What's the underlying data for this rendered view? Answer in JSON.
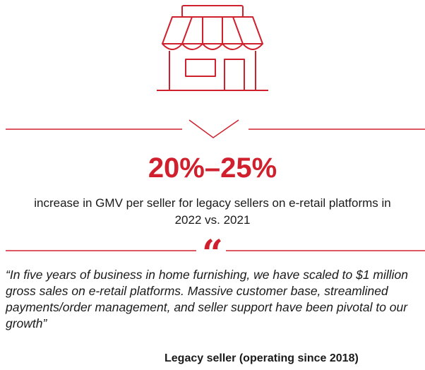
{
  "stat": "20%–25%",
  "description": "increase in GMV per seller for legacy sellers on e-retail platforms in 2022 vs. 2021",
  "quote_mark": "“",
  "quote": "“In five years of business in home furnishing, we have scaled to $1 million gross sales on e-retail platforms. Massive customer base, streamlined payments/order management, and seller support have been pivotal to our growth”",
  "attribution": "Legacy seller (operating since 2018)"
}
